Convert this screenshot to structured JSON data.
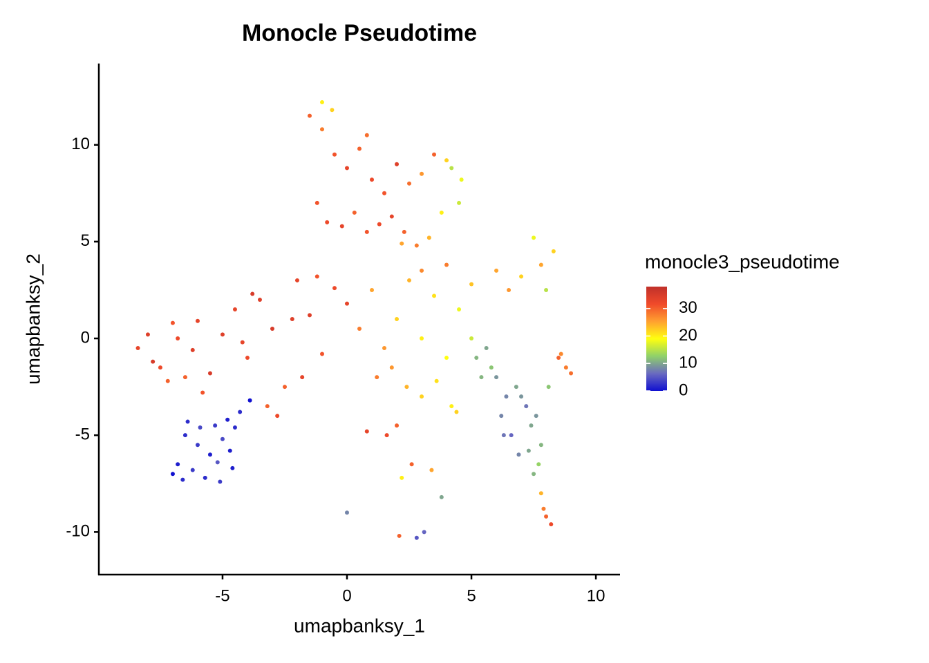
{
  "chart_data": {
    "type": "scatter",
    "title": "Monocle Pseudotime",
    "x_label": "umapbanksy_1",
    "y_label": "umapbanksy_2",
    "legend_title": "monocle3_pseudotime",
    "x": [
      -6.5,
      -6.0,
      -5.5,
      -5.0,
      -4.5,
      -6.8,
      -6.2,
      -5.7,
      -5.2,
      -4.7,
      -6.4,
      -5.9,
      -5.3,
      -4.8,
      -4.3,
      -7.0,
      -6.6,
      -5.1,
      -4.6,
      -3.9,
      -8.4,
      -8.0,
      -7.5,
      -7.0,
      -6.5,
      -6.0,
      -5.5,
      -5.0,
      -4.5,
      -4.0,
      -3.5,
      -3.0,
      -2.5,
      -2.0,
      -1.5,
      -1.0,
      -0.5,
      0.0,
      -7.8,
      -7.2,
      -6.8,
      -6.2,
      -5.8,
      -4.2,
      -3.8,
      -3.2,
      -2.8,
      -2.2,
      -1.8,
      -1.2,
      -1.5,
      -1.0,
      -0.5,
      0.0,
      0.5,
      1.0,
      1.5,
      2.0,
      2.5,
      3.0,
      3.5,
      4.0,
      4.5,
      -1.2,
      -0.8,
      -0.2,
      0.3,
      0.8,
      1.3,
      1.8,
      2.3,
      2.8,
      3.3,
      3.8,
      4.2,
      4.6,
      -1.0,
      -0.6,
      0.8,
      2.2,
      0.5,
      1.0,
      1.5,
      2.0,
      2.5,
      3.0,
      3.5,
      4.0,
      4.5,
      5.0,
      1.2,
      1.8,
      2.4,
      3.0,
      3.6,
      4.2,
      2.0,
      3.0,
      4.0,
      5.0,
      6.0,
      6.5,
      7.0,
      0.8,
      1.6,
      2.6,
      3.4,
      4.4,
      2.2,
      3.8,
      5.2,
      5.6,
      6.0,
      6.4,
      6.8,
      7.2,
      7.6,
      5.4,
      5.8,
      6.2,
      6.6,
      7.0,
      7.4,
      7.8,
      6.3,
      6.9,
      7.3,
      7.7,
      8.1,
      7.5,
      7.8,
      7.9,
      8.0,
      8.2,
      8.5,
      8.8,
      9.0,
      8.6,
      8.3,
      2.8,
      7.5,
      7.8,
      8.0,
      0.0,
      2.1,
      3.1
    ],
    "values": [
      -5.0,
      -5.5,
      -6.0,
      -5.2,
      -4.6,
      -6.5,
      -6.8,
      -7.2,
      -6.4,
      -5.8,
      -4.3,
      -4.6,
      -4.5,
      -4.2,
      -3.8,
      -7.0,
      -7.3,
      -7.4,
      -6.7,
      -3.2,
      -0.5,
      0.2,
      -1.5,
      0.8,
      -2.0,
      0.9,
      -1.8,
      0.2,
      1.5,
      -1.0,
      2.0,
      0.5,
      -2.5,
      3.0,
      1.2,
      -0.8,
      2.6,
      1.8,
      -1.2,
      -2.2,
      0.0,
      -0.6,
      -2.8,
      -0.2,
      2.3,
      -3.5,
      -4.0,
      1.0,
      -2.0,
      3.2,
      11.5,
      10.8,
      9.5,
      8.8,
      9.8,
      8.2,
      7.5,
      9.0,
      8.0,
      8.5,
      9.5,
      9.2,
      7.0,
      7.0,
      6.0,
      5.8,
      6.5,
      5.5,
      5.9,
      6.3,
      5.5,
      4.8,
      5.2,
      6.5,
      8.8,
      8.2,
      12.2,
      11.8,
      10.5,
      4.9,
      0.5,
      2.5,
      -0.5,
      1.0,
      3.0,
      0.0,
      2.2,
      -1.0,
      1.5,
      0.0,
      -2.0,
      -1.5,
      -2.5,
      -3.0,
      -2.2,
      -3.5,
      -4.5,
      3.5,
      3.8,
      2.8,
      3.5,
      2.5,
      3.2,
      -4.8,
      -5.0,
      -6.5,
      -6.8,
      -3.8,
      -7.2,
      -8.2,
      -1.0,
      -0.5,
      -2.0,
      -3.0,
      -2.5,
      -3.5,
      -4.0,
      -2.0,
      -1.5,
      -4.0,
      -5.0,
      -3.0,
      -4.5,
      -5.5,
      -5.0,
      -6.0,
      -5.8,
      -6.5,
      -2.5,
      -7.0,
      -8.0,
      -8.8,
      -9.2,
      -9.6,
      -1.0,
      -1.5,
      -1.8,
      -0.8,
      4.5,
      -10.3,
      5.2,
      3.8,
      2.5,
      -9.0,
      -10.2,
      -10.0
    ],
    "color_values": [
      2,
      3,
      1,
      4,
      2,
      1,
      3,
      2,
      5,
      1,
      2,
      4,
      3,
      1,
      2,
      0,
      2,
      3,
      1,
      0,
      33,
      34,
      32,
      31,
      30,
      33,
      35,
      34,
      33,
      32,
      34,
      35,
      30,
      33,
      34,
      31,
      32,
      33,
      35,
      30,
      32,
      34,
      31,
      33,
      35,
      30,
      32,
      34,
      33,
      31,
      30,
      28,
      31,
      33,
      30,
      32,
      31,
      34,
      29,
      26,
      30,
      22,
      16,
      31,
      32,
      33,
      30,
      31,
      32,
      33,
      30,
      28,
      24,
      20,
      15,
      18,
      20,
      22,
      29,
      25,
      28,
      25,
      26,
      22,
      24,
      20,
      21,
      19,
      18,
      16,
      28,
      26,
      24,
      22,
      21,
      20,
      30,
      27,
      28,
      23,
      25,
      26,
      22,
      33,
      32,
      30,
      25,
      22,
      20,
      10,
      11,
      10,
      9,
      8,
      10,
      7,
      9,
      11,
      12,
      8,
      6,
      9,
      10,
      11,
      7,
      8,
      10,
      13,
      12,
      11,
      24,
      28,
      30,
      32,
      30,
      28,
      29,
      27,
      22,
      5,
      18,
      25,
      15,
      8,
      30,
      6
    ],
    "xlim": [
      -9.97,
      10.97
    ],
    "xticks": [
      -5,
      0,
      5,
      10
    ],
    "ylim": [
      -12.2,
      14.2
    ],
    "yticks": [
      -10,
      -5,
      0,
      5,
      10
    ],
    "clim": [
      0,
      38
    ],
    "cticks": [
      0,
      10,
      20,
      30
    ],
    "colorscale": [
      "#1010d0",
      "#6a6ac0",
      "#8fd16a",
      "#ffff10",
      "#ffa030",
      "#f04a2a",
      "#c0302a"
    ],
    "grid": false
  }
}
